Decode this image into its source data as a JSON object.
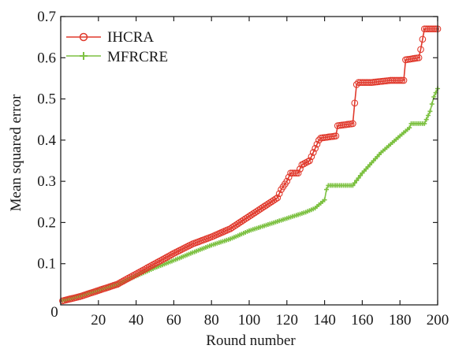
{
  "chart_data": {
    "type": "line",
    "xlabel": "Round number",
    "ylabel": "Mean squared error",
    "xlim": [
      0,
      200
    ],
    "ylim": [
      0,
      0.7
    ],
    "x_ticks": [
      0,
      20,
      40,
      60,
      80,
      100,
      120,
      140,
      160,
      180,
      200
    ],
    "x_tick_labels": [
      "0",
      "20",
      "40",
      "60",
      "80",
      "100",
      "120",
      "140",
      "160",
      "180",
      "200"
    ],
    "y_ticks": [
      0.1,
      0.2,
      0.3,
      0.4,
      0.5,
      0.6,
      0.7
    ],
    "y_tick_labels": [
      "0.1",
      "0.2",
      "0.3",
      "0.4",
      "0.5",
      "0.6",
      "0.7"
    ],
    "grid": false,
    "legend_position": "top-left",
    "series": [
      {
        "name": "IHCRA",
        "color": "#e0392c",
        "marker": "circle",
        "x": [
          1,
          10,
          20,
          30,
          40,
          50,
          60,
          70,
          80,
          90,
          95,
          100,
          105,
          110,
          115,
          117,
          120,
          122,
          126,
          128,
          132,
          134,
          135,
          137,
          138,
          146,
          147,
          155,
          156,
          157,
          158,
          165,
          175,
          182,
          183,
          190,
          191,
          193,
          200
        ],
        "y": [
          0.01,
          0.02,
          0.035,
          0.05,
          0.075,
          0.1,
          0.125,
          0.148,
          0.165,
          0.185,
          0.2,
          0.215,
          0.23,
          0.245,
          0.26,
          0.28,
          0.3,
          0.32,
          0.32,
          0.34,
          0.35,
          0.37,
          0.38,
          0.4,
          0.405,
          0.41,
          0.435,
          0.44,
          0.49,
          0.535,
          0.54,
          0.54,
          0.545,
          0.545,
          0.595,
          0.6,
          0.62,
          0.67,
          0.67
        ]
      },
      {
        "name": "MFRCRE",
        "color": "#7dc142",
        "marker": "plus",
        "x": [
          1,
          10,
          20,
          30,
          40,
          50,
          60,
          70,
          80,
          90,
          100,
          110,
          120,
          130,
          135,
          140,
          141,
          142,
          150,
          155,
          160,
          165,
          170,
          175,
          180,
          185,
          186,
          190,
          191,
          193,
          196,
          198,
          200
        ],
        "y": [
          0.01,
          0.022,
          0.035,
          0.05,
          0.07,
          0.09,
          0.108,
          0.127,
          0.145,
          0.16,
          0.18,
          0.195,
          0.21,
          0.225,
          0.235,
          0.255,
          0.28,
          0.29,
          0.29,
          0.29,
          0.32,
          0.345,
          0.37,
          0.39,
          0.41,
          0.43,
          0.44,
          0.44,
          0.44,
          0.44,
          0.47,
          0.505,
          0.525
        ]
      }
    ]
  }
}
